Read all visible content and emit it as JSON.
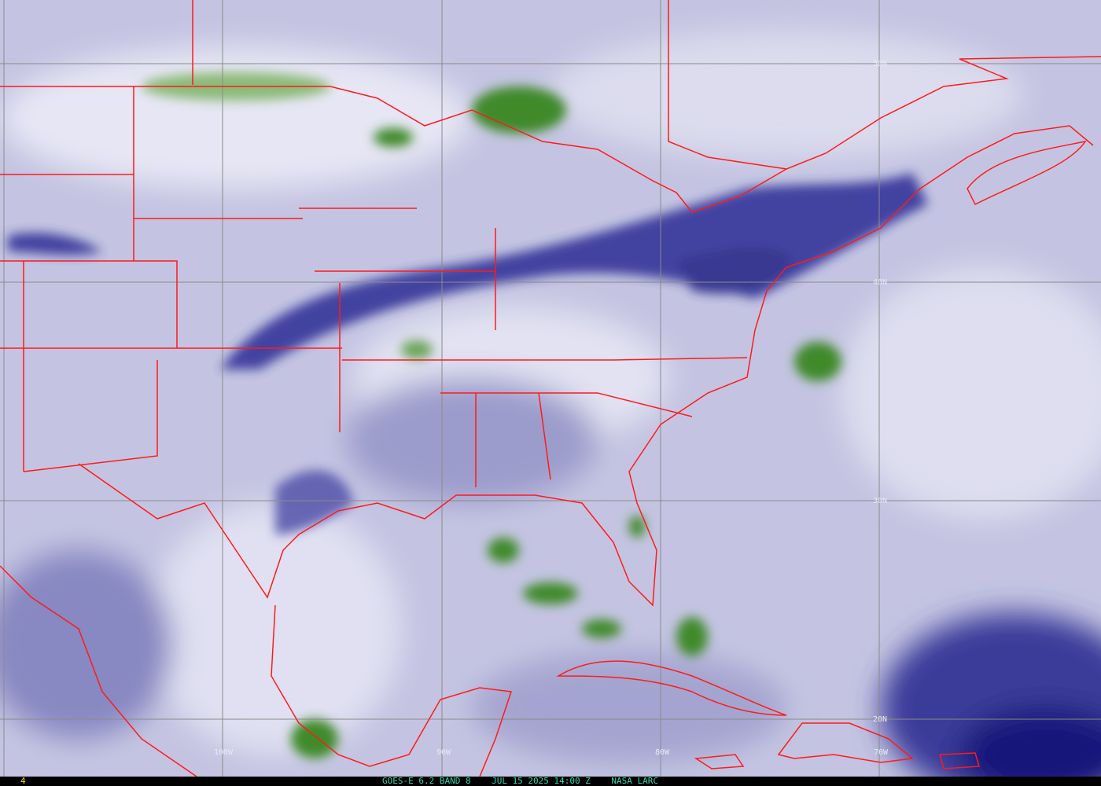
{
  "image": {
    "satellite": "GOES-E",
    "band_label": "GOES-E 6.2 BAND 8",
    "date": "JUL 15 2025",
    "time": "14:00 Z",
    "source": "NASA LARC",
    "frame_number": "4",
    "caption": "GOES-E 6.2 BAND 8    JUL 15 2025 14:00 Z    NASA LARC"
  },
  "grid": {
    "latitude_labels": [
      "50N",
      "40N",
      "30N",
      "20N"
    ],
    "longitude_labels": [
      "100W",
      "90W",
      "80W",
      "70W"
    ],
    "grid_color": "#8a8a8a"
  },
  "colors": {
    "background_moist": "#e4e4f2",
    "mid_moisture": "#a8a8d4",
    "dry_air": "#24248a",
    "cold_cloud_tops": "#3f8a2a",
    "borders": "#ff1a1a"
  }
}
